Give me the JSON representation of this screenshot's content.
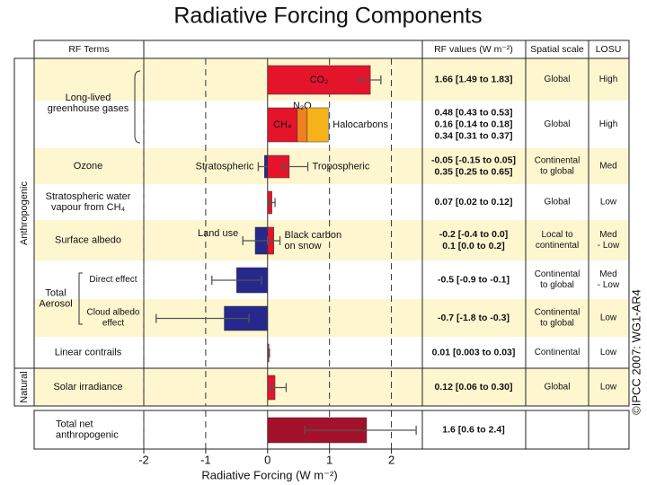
{
  "chart_data": {
    "type": "bar",
    "title": "Radiative Forcing Components",
    "header": {
      "terms": "RF Terms",
      "values": "RF values (W m⁻²)",
      "scale": "Spatial scale",
      "losu": "LOSU"
    },
    "x_label": "Radiative Forcing (W m⁻²)",
    "xlim": [
      -2,
      2.5
    ],
    "xticks": [
      -2,
      -1,
      0,
      1,
      2
    ],
    "grid": true,
    "credit": "©IPCC  2007: WG1-AR4",
    "aerosol_label": [
      "Total",
      "Aerosol"
    ],
    "groups": [
      {
        "label": "Anthropogenic",
        "rows": [
          {
            "term": [
              "Long-lived",
              "greenhouse gases"
            ],
            "scale": [
              "Global"
            ],
            "losu": [
              "High"
            ],
            "components": [
              {
                "label": [
                  "CO₂"
                ],
                "label_pos": "inside",
                "value": 1.66,
                "range": [
                  1.49,
                  1.83
                ],
                "value_label": "1.66 [1.49 to 1.83]",
                "color": "#e4142b"
              }
            ]
          },
          {
            "stacked": true,
            "scale": [
              "Global"
            ],
            "losu": [
              "High"
            ],
            "components": [
              {
                "label": [
                  "CH₄"
                ],
                "label_pos": "inside",
                "value": 0.48,
                "value_label": "0.48 [0.43 to 0.53]",
                "color": "#e4142b"
              },
              {
                "label": [
                  "N₂O"
                ],
                "label_pos": "above",
                "value": 0.16,
                "value_label": "0.16 [0.14 to 0.18]",
                "color": "#f07f1e"
              },
              {
                "label": [
                  "Halocarbons"
                ],
                "label_pos": "right",
                "value": 0.34,
                "value_label": "0.34 [0.31 to 0.37]",
                "color": "#f5b21a"
              }
            ]
          },
          {
            "term": [
              "Ozone"
            ],
            "scale": [
              "Continental",
              "to global"
            ],
            "losu": [
              "Med"
            ],
            "components": [
              {
                "label": [
                  "Stratospheric"
                ],
                "label_pos": "left",
                "value": -0.05,
                "range": [
                  -0.15,
                  0.05
                ],
                "value_label": "-0.05 [-0.15 to 0.05]",
                "color": "#27288c"
              },
              {
                "label": [
                  "Tropospheric"
                ],
                "label_pos": "right",
                "value": 0.35,
                "range": [
                  0.25,
                  0.65
                ],
                "value_label": "0.35 [0.25 to 0.65]",
                "color": "#e4142b"
              }
            ]
          },
          {
            "term": [
              "Stratospheric water",
              "vapour from CH₄"
            ],
            "scale": [
              "Global"
            ],
            "losu": [
              "Low"
            ],
            "components": [
              {
                "value": 0.07,
                "range": [
                  0.02,
                  0.12
                ],
                "value_label": "0.07 [0.02 to 0.12]",
                "color": "#e4142b"
              }
            ]
          },
          {
            "term": [
              "Surface albedo"
            ],
            "scale": [
              "Local to",
              "continental"
            ],
            "losu": [
              "Med",
              "- Low"
            ],
            "components": [
              {
                "label": [
                  "Land use"
                ],
                "label_pos": "left",
                "value": -0.2,
                "range": [
                  -0.4,
                  0.0
                ],
                "value_label": "-0.2 [-0.4 to 0.0]",
                "color": "#27288c"
              },
              {
                "label": [
                  "Black carbon",
                  "on snow"
                ],
                "label_pos": "right",
                "value": 0.1,
                "range": [
                  0.0,
                  0.2
                ],
                "value_label": "0.1 [0.0 to 0.2]",
                "color": "#e4142b"
              }
            ]
          },
          {
            "subterm": [
              "Direct effect"
            ],
            "scale": [
              "Continental",
              "to global"
            ],
            "losu": [
              "Med",
              "- Low"
            ],
            "components": [
              {
                "value": -0.5,
                "range": [
                  -0.9,
                  -0.1
                ],
                "value_label": "-0.5 [-0.9 to -0.1]",
                "color": "#27288c"
              }
            ]
          },
          {
            "subterm": [
              "Cloud albedo",
              "effect"
            ],
            "scale": [
              "Continental",
              "to global"
            ],
            "losu": [
              "Low"
            ],
            "components": [
              {
                "value": -0.7,
                "range": [
                  -1.8,
                  -0.3
                ],
                "value_label": "-0.7 [-1.8 to -0.3]",
                "color": "#27288c"
              }
            ]
          },
          {
            "term": [
              "Linear contrails"
            ],
            "scale": [
              "Continental"
            ],
            "losu": [
              "Low"
            ],
            "components": [
              {
                "value": 0.01,
                "range": [
                  0.003,
                  0.03
                ],
                "value_label": "0.01 [0.003 to 0.03]",
                "color": "#e4142b"
              }
            ]
          }
        ]
      },
      {
        "label": "Natural",
        "rows": [
          {
            "term": [
              "Solar irradiance"
            ],
            "scale": [
              "Global"
            ],
            "losu": [
              "Low"
            ],
            "components": [
              {
                "value": 0.12,
                "range": [
                  0.06,
                  0.3
                ],
                "value_label": "0.12 [0.06 to 0.30]",
                "color": "#e4142b"
              }
            ]
          }
        ]
      }
    ],
    "total": {
      "term": [
        "Total net",
        "anthropogenic"
      ],
      "components": [
        {
          "value": 1.6,
          "range": [
            0.6,
            2.4
          ],
          "value_label": "1.6 [0.6 to 2.4]",
          "color": "#a3112a"
        }
      ]
    }
  }
}
